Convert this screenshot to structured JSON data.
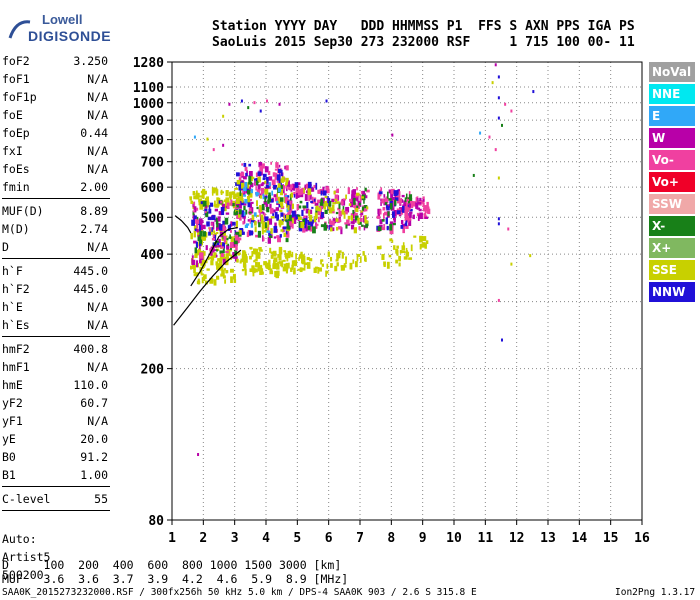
{
  "logo": {
    "line1": "Lowell",
    "line2": "DIGISONDE"
  },
  "header": {
    "row1": "Station YYYY DAY   DDD HHMMSS P1  FFS S AXN PPS IGA PS",
    "row2": "SaoLuis 2015 Sep30 273 232000 RSF     1 715 100 00- 11"
  },
  "params": [
    {
      "k": "foF2",
      "v": "3.250"
    },
    {
      "k": "foF1",
      "v": "N/A"
    },
    {
      "k": "foF1p",
      "v": "N/A"
    },
    {
      "k": "foE",
      "v": "N/A"
    },
    {
      "k": "foEp",
      "v": "0.44"
    },
    {
      "k": "fxI",
      "v": "N/A"
    },
    {
      "k": "foEs",
      "v": "N/A"
    },
    {
      "k": "fmin",
      "v": "2.00"
    },
    {
      "k": "MUF(D)",
      "v": "8.89"
    },
    {
      "k": "M(D)",
      "v": "2.74"
    },
    {
      "k": "D",
      "v": "N/A"
    },
    {
      "k": "h`F",
      "v": "445.0"
    },
    {
      "k": "h`F2",
      "v": "445.0"
    },
    {
      "k": "h`E",
      "v": "N/A"
    },
    {
      "k": "h`Es",
      "v": "N/A"
    },
    {
      "k": "hmF2",
      "v": "400.8"
    },
    {
      "k": "hmF1",
      "v": "N/A"
    },
    {
      "k": "hmE",
      "v": "110.0"
    },
    {
      "k": "yF2",
      "v": "60.7"
    },
    {
      "k": "yF1",
      "v": "N/A"
    },
    {
      "k": "yE",
      "v": "20.0"
    },
    {
      "k": "B0",
      "v": "91.2"
    },
    {
      "k": "B1",
      "v": "1.00"
    },
    {
      "k": "C-level",
      "v": "55"
    }
  ],
  "auto": {
    "label": "Auto:",
    "artist": "Artist5",
    "version": "500200"
  },
  "legend": [
    {
      "label": "NoVal",
      "color": "#a0a0a0"
    },
    {
      "label": "NNE",
      "color": "#00e8f0"
    },
    {
      "label": "E",
      "color": "#30a8f8"
    },
    {
      "label": "W",
      "color": "#b800a8"
    },
    {
      "label": "Vo-",
      "color": "#f040a0"
    },
    {
      "label": "Vo+",
      "color": "#f00028"
    },
    {
      "label": "SSW",
      "color": "#f0a8a8"
    },
    {
      "label": "X-",
      "color": "#188018"
    },
    {
      "label": "X+",
      "color": "#80b860"
    },
    {
      "label": "SSE",
      "color": "#c8d000"
    },
    {
      "label": "NNW",
      "color": "#2010d8"
    }
  ],
  "footer": {
    "d_row": "D     100  200  400  600  800 1000 1500 3000 [km]",
    "muf_row": "MUF   3.6  3.6  3.7  3.9  4.2  4.6  5.9  8.9 [MHz]",
    "file": "SAA0K_2015273232000.RSF / 300fx256h 50 kHz 5.0 km / DPS-4 SAA0K 903 / 2.6 S 315.8 E",
    "version": "Ion2Png 1.3.17"
  },
  "chart_data": {
    "type": "scatter",
    "title": "Station YYYY DAY   DDD HHMMSS P1  FFS S AXN PPS IGA PS",
    "xlabel": "",
    "ylabel": "",
    "xlim": [
      1,
      16
    ],
    "ylim": [
      80,
      1280
    ],
    "y_scale": "log",
    "x_ticks": [
      1,
      2,
      3,
      4,
      5,
      6,
      7,
      8,
      9,
      10,
      11,
      12,
      13,
      14,
      15,
      16
    ],
    "y_ticks": [
      80,
      200,
      300,
      400,
      500,
      600,
      700,
      800,
      900,
      1000,
      1100,
      1280
    ],
    "grid": "dotted",
    "echo_clusters": [
      {
        "f0": 1.55,
        "f1": 3.0,
        "h0": 340,
        "h1": 480,
        "color": "#c8d000",
        "n": 120
      },
      {
        "f0": 1.55,
        "f1": 3.0,
        "h0": 540,
        "h1": 600,
        "color": "#c8d000",
        "n": 60
      },
      {
        "f0": 1.6,
        "f1": 3.1,
        "h0": 380,
        "h1": 560,
        "color": "#b800a8",
        "n": 60
      },
      {
        "f0": 1.6,
        "f1": 3.1,
        "h0": 420,
        "h1": 560,
        "color": "#2010d8",
        "n": 40
      },
      {
        "f0": 1.6,
        "f1": 3.1,
        "h0": 400,
        "h1": 560,
        "color": "#188018",
        "n": 30
      },
      {
        "f0": 1.6,
        "f1": 3.1,
        "h0": 400,
        "h1": 560,
        "color": "#f040a0",
        "n": 30
      },
      {
        "f0": 3.0,
        "f1": 4.7,
        "h0": 360,
        "h1": 420,
        "color": "#c8d000",
        "n": 90
      },
      {
        "f0": 3.0,
        "f1": 4.7,
        "h0": 440,
        "h1": 700,
        "color": "#b800a8",
        "n": 80
      },
      {
        "f0": 3.0,
        "f1": 4.7,
        "h0": 440,
        "h1": 700,
        "color": "#f040a0",
        "n": 70
      },
      {
        "f0": 3.0,
        "f1": 4.7,
        "h0": 440,
        "h1": 700,
        "color": "#2010d8",
        "n": 50
      },
      {
        "f0": 3.0,
        "f1": 4.7,
        "h0": 440,
        "h1": 650,
        "color": "#c8d000",
        "n": 60
      },
      {
        "f0": 3.0,
        "f1": 4.7,
        "h0": 440,
        "h1": 650,
        "color": "#188018",
        "n": 30
      },
      {
        "f0": 3.0,
        "f1": 4.7,
        "h0": 460,
        "h1": 620,
        "color": "#30a8f8",
        "n": 20
      },
      {
        "f0": 4.6,
        "f1": 6.0,
        "h0": 470,
        "h1": 620,
        "color": "#b800a8",
        "n": 60
      },
      {
        "f0": 4.6,
        "f1": 6.0,
        "h0": 470,
        "h1": 620,
        "color": "#f040a0",
        "n": 50
      },
      {
        "f0": 4.6,
        "f1": 6.0,
        "h0": 470,
        "h1": 620,
        "color": "#2010d8",
        "n": 30
      },
      {
        "f0": 4.6,
        "f1": 6.0,
        "h0": 470,
        "h1": 600,
        "color": "#188018",
        "n": 20
      },
      {
        "f0": 4.6,
        "f1": 6.0,
        "h0": 470,
        "h1": 600,
        "color": "#c8d000",
        "n": 20
      },
      {
        "f0": 4.6,
        "f1": 6.0,
        "h0": 360,
        "h1": 410,
        "color": "#c8d000",
        "n": 40
      },
      {
        "f0": 6.0,
        "f1": 7.2,
        "h0": 470,
        "h1": 600,
        "color": "#b800a8",
        "n": 45
      },
      {
        "f0": 6.0,
        "f1": 7.2,
        "h0": 470,
        "h1": 600,
        "color": "#f040a0",
        "n": 40
      },
      {
        "f0": 6.0,
        "f1": 7.2,
        "h0": 470,
        "h1": 600,
        "color": "#188018",
        "n": 20
      },
      {
        "f0": 6.0,
        "f1": 7.2,
        "h0": 470,
        "h1": 600,
        "color": "#c8d000",
        "n": 25
      },
      {
        "f0": 6.0,
        "f1": 7.2,
        "h0": 370,
        "h1": 410,
        "color": "#c8d000",
        "n": 25
      },
      {
        "f0": 7.5,
        "f1": 8.6,
        "h0": 470,
        "h1": 600,
        "color": "#b800a8",
        "n": 45
      },
      {
        "f0": 7.5,
        "f1": 8.6,
        "h0": 470,
        "h1": 600,
        "color": "#f040a0",
        "n": 40
      },
      {
        "f0": 7.5,
        "f1": 8.6,
        "h0": 470,
        "h1": 600,
        "color": "#2010d8",
        "n": 20
      },
      {
        "f0": 7.5,
        "f1": 8.6,
        "h0": 470,
        "h1": 600,
        "color": "#188018",
        "n": 15
      },
      {
        "f0": 7.5,
        "f1": 8.6,
        "h0": 380,
        "h1": 440,
        "color": "#c8d000",
        "n": 25
      },
      {
        "f0": 8.4,
        "f1": 9.2,
        "h0": 500,
        "h1": 570,
        "color": "#f040a0",
        "n": 30
      },
      {
        "f0": 8.4,
        "f1": 9.2,
        "h0": 500,
        "h1": 570,
        "color": "#b800a8",
        "n": 15
      },
      {
        "f0": 8.6,
        "f1": 9.2,
        "h0": 420,
        "h1": 450,
        "color": "#c8d000",
        "n": 10
      }
    ],
    "sparse_points": [
      {
        "f": 11.3,
        "h": 1270,
        "color": "#b800a8"
      },
      {
        "f": 11.4,
        "h": 1180,
        "color": "#2010d8"
      },
      {
        "f": 11.2,
        "h": 1140,
        "color": "#c8d000"
      },
      {
        "f": 12.5,
        "h": 1080,
        "color": "#2010d8"
      },
      {
        "f": 11.4,
        "h": 1040,
        "color": "#2010d8"
      },
      {
        "f": 11.6,
        "h": 1000,
        "color": "#f040a0"
      },
      {
        "f": 11.8,
        "h": 960,
        "color": "#f040a0"
      },
      {
        "f": 11.4,
        "h": 920,
        "color": "#2010d8"
      },
      {
        "f": 11.5,
        "h": 880,
        "color": "#188018"
      },
      {
        "f": 10.8,
        "h": 840,
        "color": "#30a8f8"
      },
      {
        "f": 11.1,
        "h": 820,
        "color": "#f040a0"
      },
      {
        "f": 11.3,
        "h": 760,
        "color": "#f040a0"
      },
      {
        "f": 10.6,
        "h": 650,
        "color": "#188018"
      },
      {
        "f": 11.4,
        "h": 640,
        "color": "#c8d000"
      },
      {
        "f": 11.4,
        "h": 500,
        "color": "#2010d8"
      },
      {
        "f": 11.4,
        "h": 485,
        "color": "#2010d8"
      },
      {
        "f": 11.4,
        "h": 305,
        "color": "#f040a0"
      },
      {
        "f": 11.5,
        "h": 240,
        "color": "#2010d8"
      },
      {
        "f": 11.7,
        "h": 470,
        "color": "#f040a0"
      },
      {
        "f": 11.8,
        "h": 380,
        "color": "#c8d000"
      },
      {
        "f": 12.4,
        "h": 400,
        "color": "#c8d000"
      },
      {
        "f": 1.8,
        "h": 120,
        "color": "#b800a8"
      },
      {
        "f": 2.8,
        "h": 1000,
        "color": "#b800a8"
      },
      {
        "f": 3.2,
        "h": 1020,
        "color": "#2010d8"
      },
      {
        "f": 3.6,
        "h": 1010,
        "color": "#f040a0"
      },
      {
        "f": 4.0,
        "h": 1020,
        "color": "#f040a0"
      },
      {
        "f": 3.4,
        "h": 980,
        "color": "#188018"
      },
      {
        "f": 3.8,
        "h": 960,
        "color": "#2010d8"
      },
      {
        "f": 4.4,
        "h": 1000,
        "color": "#b800a8"
      },
      {
        "f": 5.9,
        "h": 1020,
        "color": "#2010d8"
      },
      {
        "f": 2.6,
        "h": 930,
        "color": "#c8d000"
      },
      {
        "f": 8.0,
        "h": 830,
        "color": "#b800a8"
      },
      {
        "f": 2.1,
        "h": 810,
        "color": "#c8d000"
      },
      {
        "f": 1.7,
        "h": 820,
        "color": "#30a8f8"
      },
      {
        "f": 2.3,
        "h": 760,
        "color": "#f040a0"
      },
      {
        "f": 2.6,
        "h": 780,
        "color": "#b800a8"
      }
    ],
    "profile_curves": [
      {
        "name": "",
        "points": [
          [
            1.05,
            260
          ],
          [
            1.5,
            290
          ],
          [
            1.9,
            320
          ],
          [
            2.3,
            350
          ],
          [
            2.7,
            380
          ],
          [
            3.0,
            398
          ],
          [
            3.2,
            410
          ]
        ]
      },
      {
        "name": "",
        "points": [
          [
            1.6,
            330
          ],
          [
            1.9,
            360
          ],
          [
            2.2,
            400
          ],
          [
            2.5,
            445
          ],
          [
            2.8,
            465
          ],
          [
            3.1,
            470
          ]
        ]
      },
      {
        "name": "",
        "points": [
          [
            1.1,
            505
          ],
          [
            1.3,
            490
          ],
          [
            1.5,
            470
          ],
          [
            1.6,
            455
          ]
        ]
      }
    ]
  }
}
